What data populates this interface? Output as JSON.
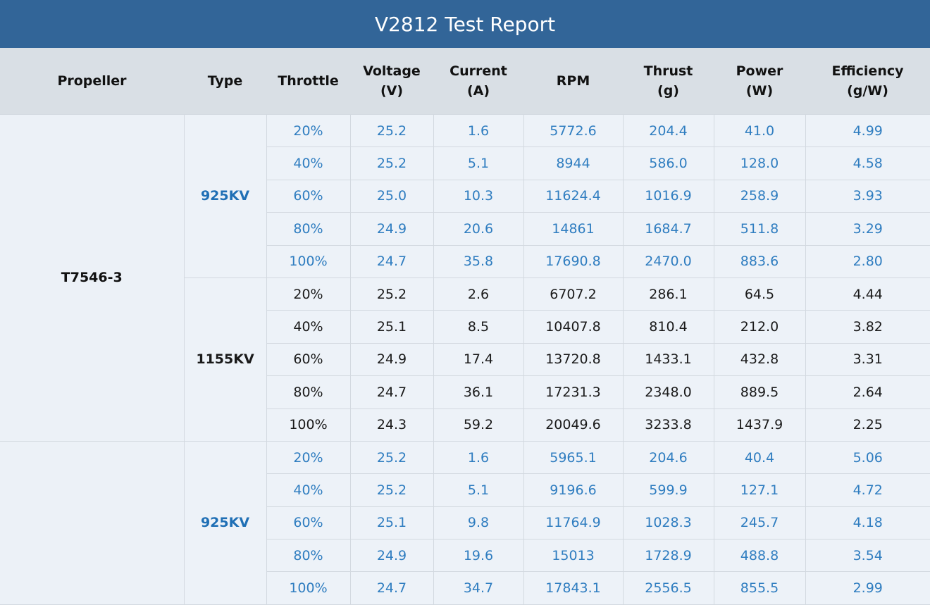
{
  "title": "V2812 Test Report",
  "columns": [
    "Propeller",
    "Type",
    "Throttle",
    "Voltage\n(V)",
    "Current\n(A)",
    "RPM",
    "Thrust\n(g)",
    "Power\n(W)",
    "Efficiency\n(g/W)"
  ],
  "colors": {
    "title_bar": "#326598",
    "header_bg": "#d9dfe5",
    "body_bg": "#edf2f8",
    "blue_text": "#2f7dc0",
    "black_text": "#1a1a1a"
  },
  "groups": [
    {
      "propeller": "T7546-3",
      "types": [
        {
          "type": "925KV",
          "color": "blue",
          "rows": [
            [
              "20%",
              "25.2",
              "1.6",
              "5772.6",
              "204.4",
              "41.0",
              "4.99"
            ],
            [
              "40%",
              "25.2",
              "5.1",
              "8944",
              "586.0",
              "128.0",
              "4.58"
            ],
            [
              "60%",
              "25.0",
              "10.3",
              "11624.4",
              "1016.9",
              "258.9",
              "3.93"
            ],
            [
              "80%",
              "24.9",
              "20.6",
              "14861",
              "1684.7",
              "511.8",
              "3.29"
            ],
            [
              "100%",
              "24.7",
              "35.8",
              "17690.8",
              "2470.0",
              "883.6",
              "2.80"
            ]
          ]
        },
        {
          "type": "1155KV",
          "color": "black",
          "rows": [
            [
              "20%",
              "25.2",
              "2.6",
              "6707.2",
              "286.1",
              "64.5",
              "4.44"
            ],
            [
              "40%",
              "25.1",
              "8.5",
              "10407.8",
              "810.4",
              "212.0",
              "3.82"
            ],
            [
              "60%",
              "24.9",
              "17.4",
              "13720.8",
              "1433.1",
              "432.8",
              "3.31"
            ],
            [
              "80%",
              "24.7",
              "36.1",
              "17231.3",
              "2348.0",
              "889.5",
              "2.64"
            ],
            [
              "100%",
              "24.3",
              "59.2",
              "20049.6",
              "3233.8",
              "1437.9",
              "2.25"
            ]
          ]
        }
      ]
    },
    {
      "propeller": "",
      "types": [
        {
          "type": "925KV",
          "color": "blue",
          "rows": [
            [
              "20%",
              "25.2",
              "1.6",
              "5965.1",
              "204.6",
              "40.4",
              "5.06"
            ],
            [
              "40%",
              "25.2",
              "5.1",
              "9196.6",
              "599.9",
              "127.1",
              "4.72"
            ],
            [
              "60%",
              "25.1",
              "9.8",
              "11764.9",
              "1028.3",
              "245.7",
              "4.18"
            ],
            [
              "80%",
              "24.9",
              "19.6",
              "15013",
              "1728.9",
              "488.8",
              "3.54"
            ],
            [
              "100%",
              "24.7",
              "34.7",
              "17843.1",
              "2556.5",
              "855.5",
              "2.99"
            ]
          ]
        }
      ]
    }
  ]
}
